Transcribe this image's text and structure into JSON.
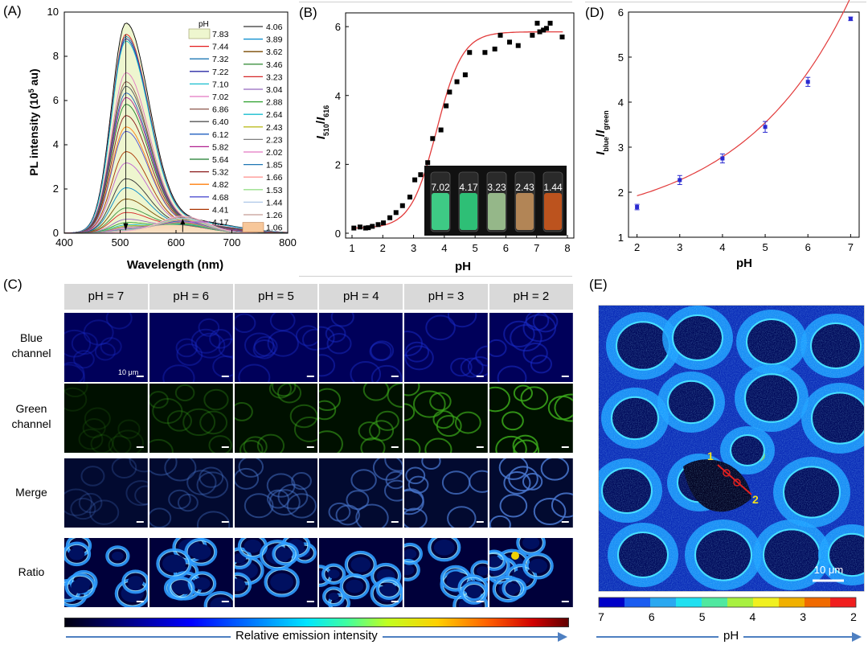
{
  "panels": {
    "a_label": "(A)",
    "b_label": "(B)",
    "c_label": "(C)",
    "d_label": "(D)",
    "e_label": "(E)"
  },
  "chart_data": [
    {
      "id": "A",
      "type": "line",
      "title": "",
      "xlabel": "Wavelength (nm)",
      "ylabel": "PL intensity (10^5 au)",
      "ylabel_parts": {
        "pre": "PL intensity (10",
        "sup": "5",
        "post": " au)"
      },
      "xlim": [
        400,
        800
      ],
      "ylim": [
        0,
        10
      ],
      "xticks": [
        400,
        500,
        600,
        700,
        800
      ],
      "yticks": [
        0,
        2,
        4,
        6,
        8,
        10
      ],
      "legend_title": "pH",
      "legend_col1": [
        "7.83",
        "7.44",
        "7.32",
        "7.22",
        "7.10",
        "7.02",
        "6.86",
        "6.40",
        "6.12",
        "5.82",
        "5.64",
        "5.32",
        "4.82",
        "4.68",
        "4.41",
        "4.17"
      ],
      "legend_col2": [
        "4.06",
        "3.89",
        "3.62",
        "3.46",
        "3.23",
        "3.04",
        "2.88",
        "2.64",
        "2.43",
        "2.23",
        "2.02",
        "1.85",
        "1.66",
        "1.53",
        "1.44",
        "1.26",
        "1.06"
      ],
      "series_peaks_510": [
        9.3,
        8.8,
        8.7,
        8.6,
        8.5,
        7.1,
        6.7,
        6.5,
        6.2,
        6.0,
        5.7,
        5.2,
        4.7,
        4.5,
        3.6,
        3.1,
        2.4,
        2.0,
        1.5,
        1.1,
        0.9,
        0.6,
        0.45,
        0.35,
        0.3,
        0.25,
        0.2,
        0.15,
        0.12,
        0.1,
        0.08,
        0.06,
        0.05
      ],
      "red_band_peak_616": 0.75,
      "colors": [
        "#000000",
        "#e31a1c",
        "#1f78b4",
        "#2a2aa5",
        "#17becf",
        "#e377c2",
        "#8c564b",
        "#555555",
        "#1f5fbf",
        "#b0208f",
        "#1a7a2a",
        "#8b1a1a",
        "#ff7f0e",
        "#5050d0",
        "#aa3300",
        "#c060d0",
        "#333333",
        "#0088cc",
        "#7a4a00",
        "#3d9140",
        "#d62728",
        "#9467bd",
        "#2ca02c",
        "#17becf",
        "#bcbd22",
        "#7f7f7f",
        "#e377c2",
        "#1f77b4",
        "#ff9896",
        "#98df8a",
        "#aec7e8",
        "#c49c94",
        "#f7b6d2"
      ]
    },
    {
      "id": "B",
      "type": "scatter",
      "title": "",
      "xlabel": "pH",
      "ylabel": "I510/I616",
      "ylabel_parts": {
        "a": "I",
        "a_sub": "510",
        "slash": "/",
        "b": "I",
        "b_sub": "616"
      },
      "xlim": [
        1,
        8
      ],
      "ylim": [
        0,
        6.4
      ],
      "xticks": [
        1,
        2,
        3,
        4,
        5,
        6,
        7,
        8
      ],
      "yticks": [
        0,
        2,
        4,
        6
      ],
      "x": [
        1.06,
        1.26,
        1.44,
        1.53,
        1.66,
        1.85,
        2.02,
        2.23,
        2.43,
        2.64,
        2.88,
        3.04,
        3.23,
        3.46,
        3.62,
        3.89,
        4.06,
        4.17,
        4.41,
        4.68,
        4.82,
        5.32,
        5.64,
        5.82,
        6.12,
        6.4,
        6.86,
        7.02,
        7.1,
        7.22,
        7.32,
        7.44,
        7.83
      ],
      "y": [
        0.15,
        0.18,
        0.15,
        0.16,
        0.2,
        0.25,
        0.3,
        0.45,
        0.6,
        0.8,
        1.05,
        1.55,
        1.7,
        2.05,
        2.75,
        3.0,
        3.7,
        4.1,
        4.4,
        4.6,
        5.25,
        5.25,
        5.35,
        5.75,
        5.55,
        5.45,
        5.75,
        6.1,
        5.85,
        5.9,
        5.95,
        6.1,
        5.7
      ],
      "fit_color": "#e23b3b",
      "inset_labels": [
        "7.02",
        "4.17",
        "3.23",
        "2.43",
        "1.44"
      ],
      "inset_vial_colors": [
        "#3fd38a",
        "#2ec77a",
        "#9bbf8e",
        "#b98a58",
        "#c4551e"
      ]
    },
    {
      "id": "D",
      "type": "scatter",
      "title": "",
      "xlabel": "pH",
      "ylabel": "Iblue/Igreen",
      "ylabel_parts": {
        "a": "I",
        "a_sub": "blue",
        "slash": "/",
        "b": "I",
        "b_sub": "green"
      },
      "xlim": [
        1.8,
        7.2
      ],
      "ylim": [
        1,
        6
      ],
      "xticks": [
        2,
        3,
        4,
        5,
        6,
        7
      ],
      "yticks": [
        1,
        2,
        3,
        4,
        5,
        6
      ],
      "x": [
        2,
        3,
        4,
        5,
        6,
        7
      ],
      "y": [
        1.67,
        2.27,
        2.75,
        3.45,
        4.45,
        5.85
      ],
      "err": [
        0.06,
        0.1,
        0.1,
        0.12,
        0.1,
        0.04
      ],
      "point_color": "#2a2ad0",
      "fit_color": "#e23b3b"
    }
  ],
  "panelC": {
    "columns": [
      "pH = 7",
      "pH = 6",
      "pH = 5",
      "pH = 4",
      "pH = 3",
      "pH = 2"
    ],
    "rows": [
      {
        "label_line1": "Blue",
        "label_line2": "channel",
        "kind": "blue"
      },
      {
        "label_line1": "Green",
        "label_line2": "channel",
        "kind": "green"
      },
      {
        "label_line1": "Merge",
        "label_line2": "",
        "kind": "merge"
      },
      {
        "label_line1": "Ratio",
        "label_line2": "",
        "kind": "ratio"
      }
    ],
    "scale_text": "10 μm",
    "colorbar_caption": "Relative emission intensity"
  },
  "panelE": {
    "scale_text": "10 μm",
    "marker1": "1",
    "marker2": "2",
    "colorbar_ticks": [
      "7",
      "6",
      "5",
      "4",
      "3",
      "2"
    ],
    "colorbar_colors": [
      "#0000c8",
      "#1a5cf0",
      "#2aa8f0",
      "#20e0f0",
      "#50e8a0",
      "#a8f040",
      "#f0f020",
      "#f0b000",
      "#f06a00",
      "#f01e1e"
    ],
    "caption": "pH"
  }
}
